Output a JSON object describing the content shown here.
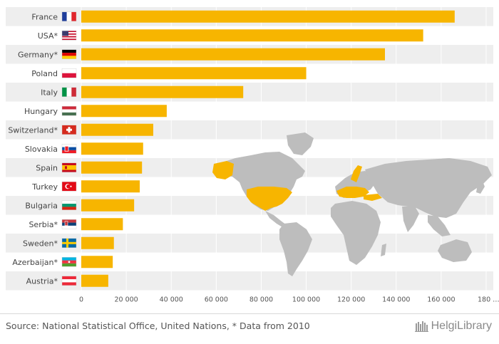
{
  "chart_data": {
    "type": "bar",
    "orientation": "horizontal",
    "categories": [
      "France",
      "USA*",
      "Germany*",
      "Poland",
      "Italy",
      "Hungary",
      "Switzerland*",
      "Slovakia",
      "Spain",
      "Turkey",
      "Bulgaria",
      "Serbia*",
      "Sweden*",
      "Azerbaijan*",
      "Austria*"
    ],
    "values": [
      166000,
      152000,
      135000,
      100000,
      72000,
      38000,
      32000,
      27500,
      27000,
      26000,
      23500,
      18500,
      14500,
      14000,
      12000
    ],
    "bar_color": "#f7b500",
    "xlim": [
      0,
      180000
    ],
    "ticks": [
      "0",
      "20 000",
      "40 000",
      "60 000",
      "80 000",
      "100 000",
      "120 000",
      "140 000",
      "160 000",
      "180 …"
    ],
    "grid": true,
    "background_map": "world map with highlighted countries"
  },
  "footer": {
    "source": "Source: National Statistical Office, United Nations, * Data from 2010",
    "logo_text": "HelgiLibrary"
  }
}
